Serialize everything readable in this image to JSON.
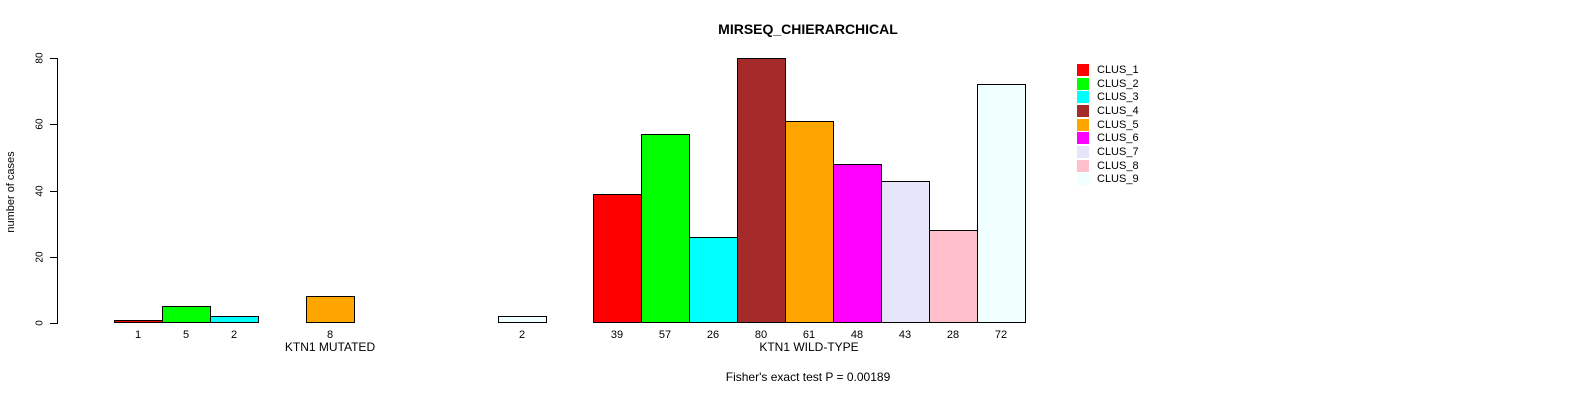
{
  "chart_data": {
    "type": "bar",
    "title": "MIRSEQ_CHIERARCHICAL",
    "ylabel": "number of cases",
    "ylim": [
      0,
      80
    ],
    "yticks": [
      0,
      20,
      40,
      60,
      80
    ],
    "grid": false,
    "legend_position": "right",
    "clusters": [
      {
        "label": "CLUS_1",
        "color": "#FF0000"
      },
      {
        "label": "CLUS_2",
        "color": "#00FF00"
      },
      {
        "label": "CLUS_3",
        "color": "#00FFFF"
      },
      {
        "label": "CLUS_4",
        "color": "#A52A2A"
      },
      {
        "label": "CLUS_5",
        "color": "#FFA500"
      },
      {
        "label": "CLUS_6",
        "color": "#FF00FF"
      },
      {
        "label": "CLUS_7",
        "color": "#E6E6FA"
      },
      {
        "label": "CLUS_8",
        "color": "#FFC0CB"
      },
      {
        "label": "CLUS_9",
        "color": "#F0FFFF"
      }
    ],
    "groups": [
      {
        "label": "KTN1 MUTATED",
        "values": [
          1,
          5,
          2,
          0,
          8,
          0,
          0,
          0,
          2
        ]
      },
      {
        "label": "KTN1 WILD-TYPE",
        "values": [
          39,
          57,
          26,
          80,
          61,
          48,
          43,
          28,
          72
        ]
      }
    ],
    "annotation": "Fisher's exact test P = 0.00189"
  }
}
